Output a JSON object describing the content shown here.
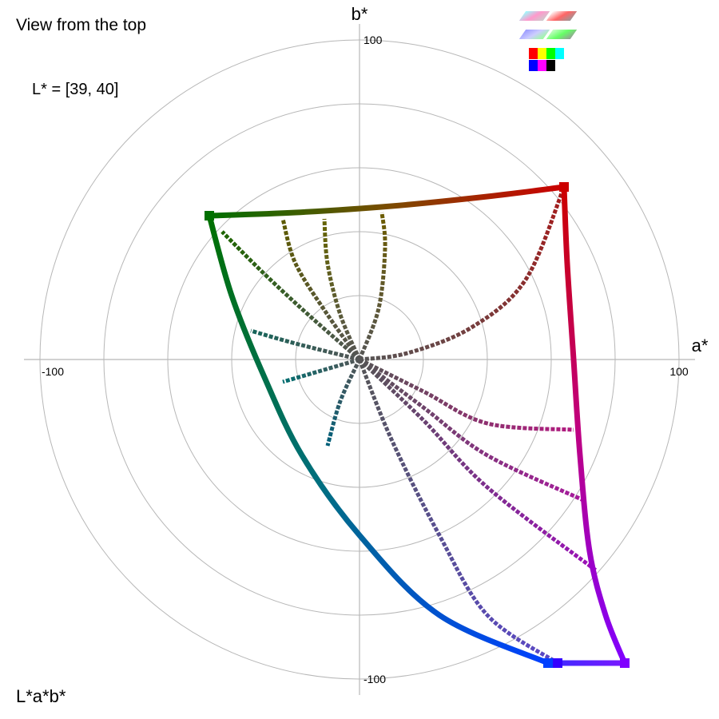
{
  "header": {
    "view_title": "View from the top",
    "l_range": "L* = [39, 40]",
    "space_label": "L*a*b*"
  },
  "thumbnails": {
    "icons": [
      "view-top-thumb",
      "view-side-thumb",
      "view-front-thumb",
      "view-3d-thumb"
    ],
    "swatches": [
      "#ff0000",
      "#ffff00",
      "#00ff00",
      "#00ffff",
      "#0000ff",
      "#ff00ff",
      "#000000",
      "#ffffff"
    ]
  },
  "chart_data": {
    "type": "scatter",
    "xlabel": "a*",
    "ylabel": "b*",
    "xlim": [
      -100,
      100
    ],
    "ylim": [
      -100,
      100
    ],
    "x_ticks": [
      -100,
      100
    ],
    "y_ticks": [
      100,
      -100
    ],
    "x_tick_labels": [
      "-100",
      "100"
    ],
    "y_tick_labels": [
      "100",
      "-100"
    ],
    "polar_grid_radii": [
      20,
      40,
      60,
      80,
      100
    ],
    "grid": true,
    "center": [
      0,
      0
    ],
    "gamut_vertices": [
      {
        "name": "red",
        "a": 64,
        "b": 54,
        "color": "#cc0000"
      },
      {
        "name": "green",
        "a": -47,
        "b": 45,
        "color": "#007000"
      },
      {
        "name": "blue",
        "a": 59,
        "b": -95,
        "color": "#0040ff"
      },
      {
        "name": "blue-violet",
        "a": 62,
        "b": -95,
        "color": "#3300ff"
      },
      {
        "name": "violet",
        "a": 83,
        "b": -95,
        "color": "#8000ff"
      }
    ],
    "boundary_segments": [
      {
        "name": "red-green",
        "points": [
          [
            64,
            54
          ],
          [
            40,
            51
          ],
          [
            10,
            48
          ],
          [
            -20,
            46
          ],
          [
            -47,
            45
          ]
        ],
        "colors": [
          "#cc0000",
          "#7a4c00",
          "#006f00"
        ]
      },
      {
        "name": "red-magenta-violet",
        "points": [
          [
            64,
            54
          ],
          [
            65,
            30
          ],
          [
            67,
            0
          ],
          [
            69,
            -30
          ],
          [
            72,
            -60
          ],
          [
            77,
            -80
          ],
          [
            83,
            -95
          ]
        ],
        "colors": [
          "#cc0000",
          "#c0007f",
          "#8000ff"
        ]
      },
      {
        "name": "green-cyan-blue",
        "points": [
          [
            -47,
            45
          ],
          [
            -40,
            20
          ],
          [
            -30,
            -5
          ],
          [
            -18,
            -30
          ],
          [
            0,
            -55
          ],
          [
            25,
            -80
          ],
          [
            59,
            -95
          ]
        ],
        "colors": [
          "#007000",
          "#006f7f",
          "#0040ff"
        ]
      },
      {
        "name": "blue-violet-bottom",
        "points": [
          [
            59,
            -95
          ],
          [
            83,
            -95
          ]
        ],
        "colors": [
          "#3a2bff",
          "#7a18ff"
        ]
      }
    ],
    "spokes": [
      {
        "points": [
          [
            0,
            0
          ],
          [
            15,
            2
          ],
          [
            35,
            10
          ],
          [
            52,
            25
          ],
          [
            64,
            54
          ]
        ],
        "colors": [
          "#555555",
          "#a61a1a"
        ]
      },
      {
        "points": [
          [
            0,
            0
          ],
          [
            6,
            16
          ],
          [
            8,
            35
          ],
          [
            7,
            46
          ]
        ],
        "colors": [
          "#555555",
          "#6d5c00"
        ]
      },
      {
        "points": [
          [
            0,
            0
          ],
          [
            -6,
            14
          ],
          [
            -10,
            30
          ],
          [
            -11,
            44
          ]
        ],
        "colors": [
          "#555555",
          "#666400"
        ]
      },
      {
        "points": [
          [
            0,
            0
          ],
          [
            -10,
            14
          ],
          [
            -20,
            30
          ],
          [
            -24,
            44
          ]
        ],
        "colors": [
          "#555555",
          "#5d5a00"
        ]
      },
      {
        "points": [
          [
            0,
            0
          ],
          [
            -16,
            14
          ],
          [
            -30,
            27
          ],
          [
            -43,
            40
          ]
        ],
        "colors": [
          "#555555",
          "#1e6500"
        ]
      },
      {
        "points": [
          [
            0,
            0
          ],
          [
            -20,
            5
          ],
          [
            -34,
            9
          ]
        ],
        "colors": [
          "#555555",
          "#15655a"
        ]
      },
      {
        "points": [
          [
            0,
            0
          ],
          [
            -24,
            -7
          ]
        ],
        "colors": [
          "#555555",
          "#006d70"
        ]
      },
      {
        "points": [
          [
            0,
            0
          ],
          [
            -6,
            -13
          ],
          [
            -10,
            -27
          ]
        ],
        "colors": [
          "#555555",
          "#00607a"
        ]
      },
      {
        "points": [
          [
            0,
            0
          ],
          [
            10,
            -25
          ],
          [
            25,
            -55
          ],
          [
            40,
            -80
          ],
          [
            62,
            -95
          ]
        ],
        "colors": [
          "#555555",
          "#5a48c8"
        ]
      },
      {
        "points": [
          [
            0,
            0
          ],
          [
            20,
            -10
          ],
          [
            40,
            -20
          ],
          [
            67,
            -22
          ]
        ],
        "colors": [
          "#555555",
          "#b21a80"
        ]
      },
      {
        "points": [
          [
            0,
            0
          ],
          [
            20,
            -15
          ],
          [
            40,
            -30
          ],
          [
            70,
            -44
          ]
        ],
        "colors": [
          "#555555",
          "#a71a9c"
        ]
      },
      {
        "points": [
          [
            0,
            0
          ],
          [
            20,
            -19
          ],
          [
            40,
            -40
          ],
          [
            74,
            -66
          ]
        ],
        "colors": [
          "#555555",
          "#9c10b8"
        ]
      }
    ]
  }
}
